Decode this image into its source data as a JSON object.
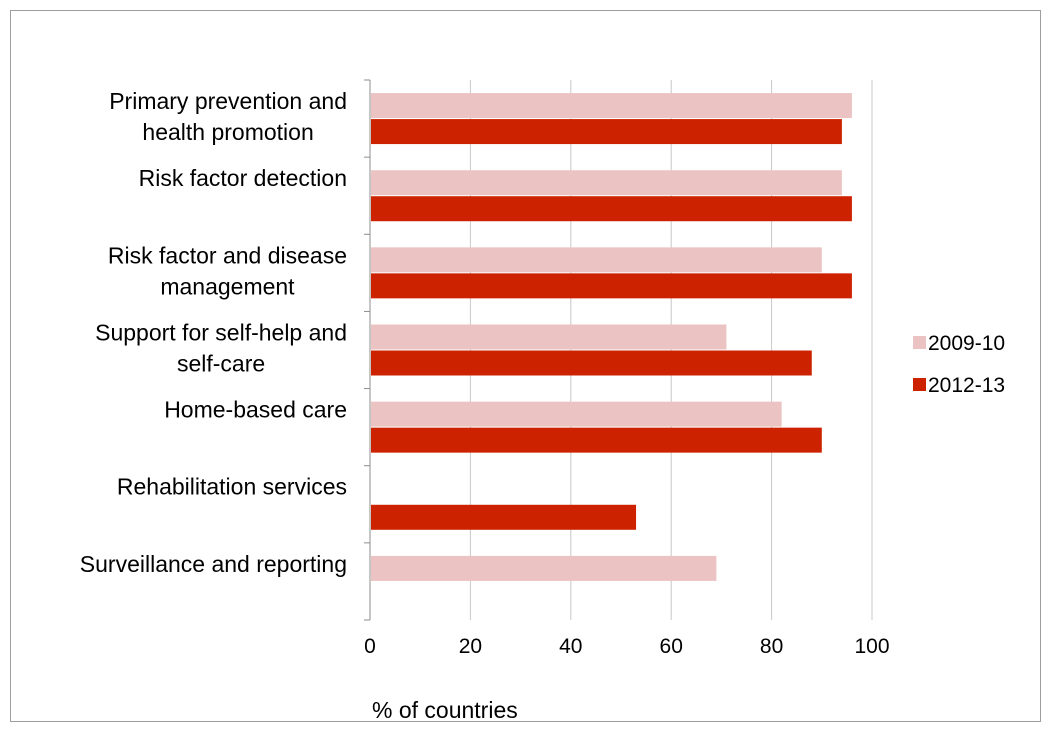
{
  "chart_data": {
    "type": "bar",
    "orientation": "horizontal",
    "categories": [
      [
        "Primary prevention and",
        "health promotion"
      ],
      [
        "Risk factor detection"
      ],
      [
        "Risk factor and disease",
        "management"
      ],
      [
        "Support for self-help and",
        "self-care"
      ],
      [
        "Home-based care"
      ],
      [
        "Rehabilitation services"
      ],
      [
        "Surveillance and reporting"
      ]
    ],
    "series": [
      {
        "name": "2009-10",
        "color": "#ecc3c3",
        "values": [
          96,
          94,
          90,
          71,
          82,
          null,
          69
        ]
      },
      {
        "name": "2012-13",
        "color": "#cc2200",
        "values": [
          94,
          96,
          96,
          88,
          90,
          53,
          null
        ]
      }
    ],
    "xlabel": "% of countries",
    "xlim": [
      0,
      100
    ],
    "xticks": [
      "0",
      "20",
      "40",
      "60",
      "80",
      "100"
    ],
    "grid": "vertical",
    "legend_position": "right"
  }
}
